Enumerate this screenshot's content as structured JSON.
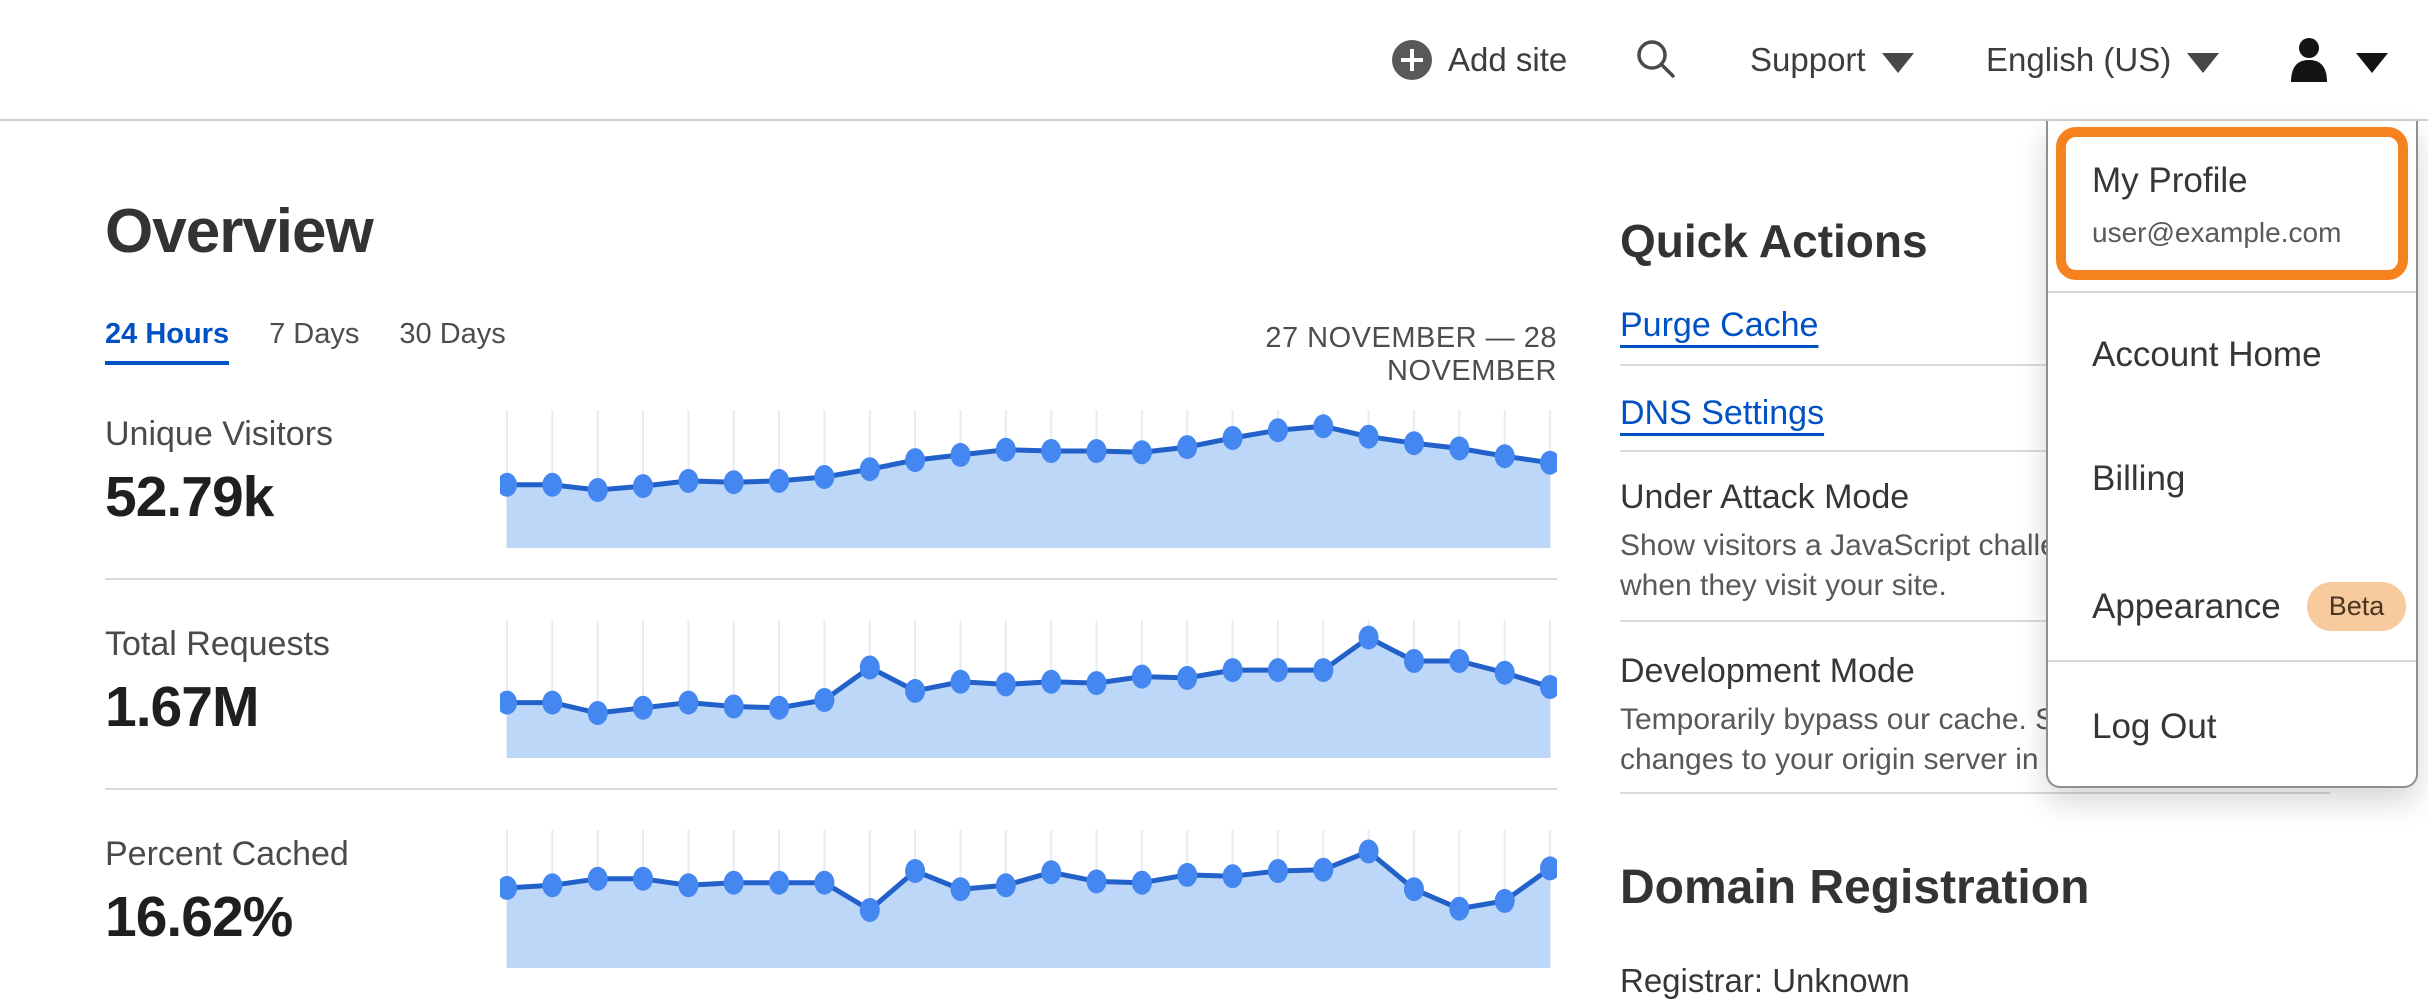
{
  "header": {
    "add_site_label": "Add site",
    "support_label": "Support",
    "language_label": "English (US)"
  },
  "user_menu": {
    "items": [
      {
        "label": "My Profile",
        "sublabel": "user@example.com",
        "highlighted": true
      },
      {
        "label": "Account Home"
      },
      {
        "label": "Billing"
      },
      {
        "label": "Appearance",
        "badge": "Beta"
      },
      {
        "label": "Log Out"
      }
    ]
  },
  "main": {
    "title": "Overview",
    "tabs": [
      {
        "label": "24 Hours",
        "active": true
      },
      {
        "label": "7 Days",
        "active": false
      },
      {
        "label": "30 Days",
        "active": false
      }
    ],
    "date_range": "27 NOVEMBER — 28 NOVEMBER",
    "metrics": [
      {
        "label": "Unique Visitors",
        "value": "52.79k"
      },
      {
        "label": "Total Requests",
        "value": "1.67M"
      },
      {
        "label": "Percent Cached",
        "value": "16.62%"
      }
    ]
  },
  "quick_actions": {
    "title": "Quick Actions",
    "links": [
      "Purge Cache",
      "DNS Settings"
    ],
    "toggles": [
      {
        "title": "Under Attack Mode",
        "desc_lines": [
          "Show visitors a JavaScript challenge",
          "when they visit your site."
        ]
      },
      {
        "title": "Development Mode",
        "desc_lines": [
          "Temporarily bypass our cache. See",
          "changes to your origin server in real time."
        ]
      }
    ]
  },
  "domain_registration": {
    "title": "Domain Registration",
    "registrar": "Registrar: Unknown"
  },
  "chart_data": [
    {
      "type": "area",
      "metric": "Unique Visitors",
      "display_value": "52.79k",
      "time_range": "27 November — 28 November (24 Hours)",
      "points": 24,
      "note": "sparkline without y-axis; values are percent of chart height",
      "values": [
        44,
        44,
        40,
        43,
        47,
        46,
        47,
        50,
        56,
        63,
        67,
        71,
        70,
        70,
        69,
        73,
        80,
        86,
        89,
        81,
        76,
        72,
        66,
        61
      ],
      "grid": "vertical-only",
      "legend": "none"
    },
    {
      "type": "area",
      "metric": "Total Requests",
      "display_value": "1.67M",
      "time_range": "27 November — 28 November (24 Hours)",
      "points": 24,
      "note": "sparkline without y-axis; values are percent of chart height",
      "values": [
        38,
        38,
        30,
        34,
        38,
        35,
        34,
        40,
        65,
        47,
        54,
        52,
        54,
        53,
        58,
        57,
        63,
        63,
        63,
        88,
        70,
        70,
        61,
        50
      ],
      "grid": "vertical-only",
      "legend": "none"
    },
    {
      "type": "area",
      "metric": "Percent Cached",
      "display_value": "16.62%",
      "time_range": "27 November — 28 November (24 Hours)",
      "points": 24,
      "note": "sparkline without y-axis; values are percent of chart height",
      "values": [
        57,
        59,
        64,
        64,
        59,
        61,
        61,
        61,
        40,
        70,
        56,
        59,
        69,
        62,
        61,
        67,
        66,
        70,
        71,
        85,
        56,
        41,
        47,
        72
      ],
      "grid": "vertical-only",
      "legend": "none"
    }
  ],
  "colors": {
    "accent_blue": "#0051c3",
    "highlight_orange": "#f6821f",
    "chart_grid": "#e7ecf4",
    "chart_fill": "#bdd7f8",
    "chart_line": "#2161c9",
    "chart_marker": "#4587f0",
    "beta_badge_bg": "#f8cb9e",
    "beta_badge_text": "#4a3522"
  }
}
